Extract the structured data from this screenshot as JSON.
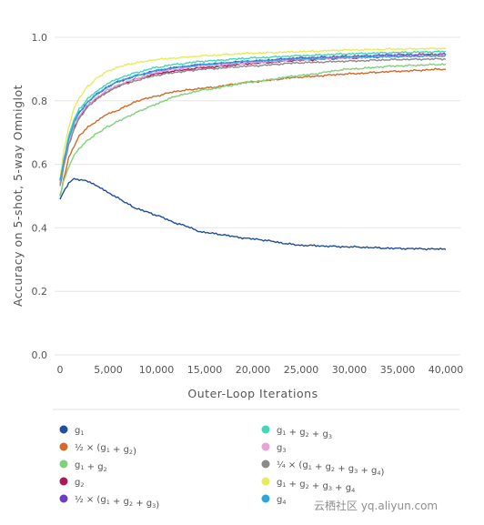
{
  "chart_data": {
    "type": "line",
    "xlabel": "Outer-Loop Iterations",
    "ylabel": "Accuracy on 5-shot, 5-way Omniglot",
    "xlim": [
      0,
      40000
    ],
    "ylim": [
      0,
      1.0
    ],
    "xticks": [
      0,
      5000,
      10000,
      15000,
      20000,
      25000,
      30000,
      35000,
      40000
    ],
    "xtick_labels": [
      "0",
      "5,000",
      "10,000",
      "15,000",
      "20,000",
      "25,000",
      "30,000",
      "35,000",
      "40,000"
    ],
    "yticks": [
      0,
      0.2,
      0.4,
      0.6,
      0.8,
      1.0
    ],
    "ytick_labels": [
      "0.0",
      "0.2",
      "0.4",
      "0.6",
      "0.8",
      "1.0"
    ],
    "grid": "horizontal",
    "legend_position": "bottom",
    "x": [
      0,
      500,
      1000,
      1500,
      2000,
      3000,
      4000,
      5000,
      6000,
      7000,
      8000,
      10000,
      12000,
      15000,
      20000,
      25000,
      30000,
      35000,
      40000
    ],
    "series": [
      {
        "label_parts": [
          [
            "g",
            "1"
          ]
        ],
        "color": "#1f4e9c",
        "values": [
          0.49,
          0.52,
          0.545,
          0.555,
          0.552,
          0.545,
          0.53,
          0.51,
          0.495,
          0.475,
          0.46,
          0.44,
          0.415,
          0.385,
          0.365,
          0.345,
          0.34,
          0.335,
          0.333
        ]
      },
      {
        "label_parts": [
          [
            "½ × (g",
            "1"
          ],
          [
            " + g",
            "2"
          ],
          [
            ")",
            ""
          ]
        ],
        "color": "#d4682b",
        "values": [
          0.5,
          0.57,
          0.63,
          0.66,
          0.69,
          0.72,
          0.74,
          0.76,
          0.77,
          0.785,
          0.8,
          0.815,
          0.83,
          0.84,
          0.86,
          0.875,
          0.885,
          0.893,
          0.9
        ]
      },
      {
        "label_parts": [
          [
            "g",
            "1"
          ],
          [
            " + g",
            "2"
          ]
        ],
        "color": "#7fd27a",
        "values": [
          0.5,
          0.56,
          0.6,
          0.63,
          0.65,
          0.68,
          0.7,
          0.72,
          0.735,
          0.75,
          0.765,
          0.79,
          0.815,
          0.835,
          0.86,
          0.88,
          0.9,
          0.91,
          0.915
        ]
      },
      {
        "label_parts": [
          [
            "g",
            "2"
          ]
        ],
        "color": "#a8185a",
        "values": [
          0.55,
          0.62,
          0.68,
          0.72,
          0.75,
          0.79,
          0.81,
          0.83,
          0.845,
          0.86,
          0.87,
          0.885,
          0.895,
          0.905,
          0.918,
          0.928,
          0.935,
          0.94,
          0.942
        ]
      },
      {
        "label_parts": [
          [
            "½ × (g",
            "1"
          ],
          [
            " + g",
            "2"
          ],
          [
            " + g",
            "3"
          ],
          [
            ")",
            ""
          ]
        ],
        "color": "#6a3fc2",
        "values": [
          0.55,
          0.63,
          0.69,
          0.735,
          0.765,
          0.8,
          0.825,
          0.845,
          0.86,
          0.87,
          0.88,
          0.895,
          0.905,
          0.915,
          0.925,
          0.935,
          0.94,
          0.945,
          0.947
        ]
      },
      {
        "label_parts": [
          [
            "g",
            "1"
          ],
          [
            " + g",
            "2"
          ],
          [
            " + g",
            "3"
          ]
        ],
        "color": "#3ed8b8",
        "values": [
          0.54,
          0.63,
          0.7,
          0.745,
          0.775,
          0.81,
          0.835,
          0.855,
          0.87,
          0.88,
          0.89,
          0.905,
          0.915,
          0.925,
          0.935,
          0.942,
          0.948,
          0.952,
          0.955
        ]
      },
      {
        "label_parts": [
          [
            "g",
            "3"
          ]
        ],
        "color": "#e7a3d8",
        "values": [
          0.54,
          0.62,
          0.68,
          0.725,
          0.755,
          0.79,
          0.815,
          0.835,
          0.85,
          0.86,
          0.87,
          0.89,
          0.9,
          0.91,
          0.92,
          0.93,
          0.935,
          0.94,
          0.943
        ]
      },
      {
        "label_parts": [
          [
            "¼ × (g",
            "1"
          ],
          [
            " + g",
            "2"
          ],
          [
            " + g",
            "3"
          ],
          [
            " + g",
            "4"
          ],
          [
            ")",
            ""
          ]
        ],
        "color": "#8a8a8a",
        "values": [
          0.53,
          0.61,
          0.67,
          0.715,
          0.745,
          0.785,
          0.81,
          0.83,
          0.845,
          0.855,
          0.865,
          0.88,
          0.89,
          0.9,
          0.91,
          0.92,
          0.925,
          0.93,
          0.932
        ]
      },
      {
        "label_parts": [
          [
            "g",
            "1"
          ],
          [
            " + g",
            "2"
          ],
          [
            " + g",
            "3"
          ],
          [
            " + g",
            "4"
          ]
        ],
        "color": "#eaea5a",
        "values": [
          0.56,
          0.66,
          0.73,
          0.78,
          0.81,
          0.85,
          0.875,
          0.895,
          0.905,
          0.915,
          0.92,
          0.93,
          0.935,
          0.942,
          0.95,
          0.955,
          0.96,
          0.963,
          0.965
        ]
      },
      {
        "label_parts": [
          [
            "g",
            "4"
          ]
        ],
        "color": "#2aa7dc",
        "values": [
          0.55,
          0.63,
          0.69,
          0.735,
          0.765,
          0.8,
          0.825,
          0.845,
          0.86,
          0.87,
          0.88,
          0.895,
          0.905,
          0.915,
          0.925,
          0.932,
          0.937,
          0.94,
          0.942
        ]
      }
    ]
  },
  "watermark": "云栖社区 yq.aliyun.com"
}
